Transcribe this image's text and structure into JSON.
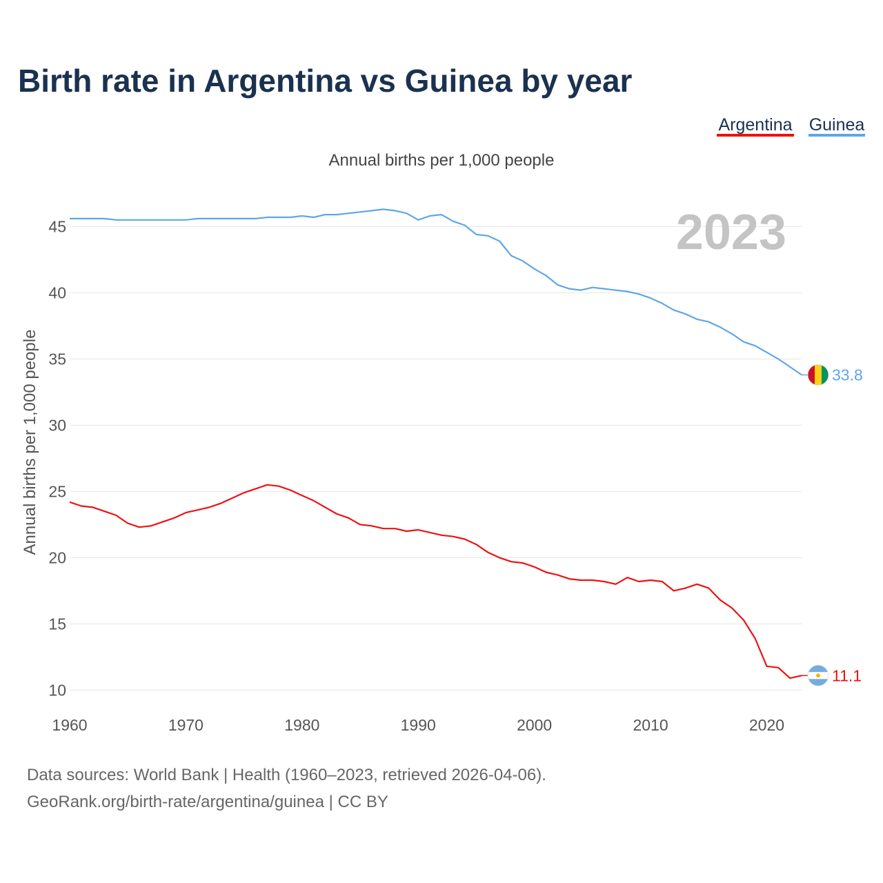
{
  "title": "Birth rate in Argentina vs Guinea by year",
  "subtitle": "Annual births per 1,000 people",
  "year_overlay": "2023",
  "legend": [
    {
      "name": "Argentina",
      "color": "#ee1111"
    },
    {
      "name": "Guinea",
      "color": "#5ea6e8"
    }
  ],
  "sources": {
    "line1": "Data sources: World Bank | Health (1960–2023, retrieved 2026-04-06).",
    "line2": "GeoRank.org/birth-rate/argentina/guinea | CC BY"
  },
  "chart_data": {
    "type": "line",
    "title": "Birth rate in Argentina vs Guinea by year",
    "subtitle": "Annual births per 1,000 people",
    "xlabel": "",
    "ylabel": "Annual births per 1,000 people",
    "xlim": [
      1960,
      2023
    ],
    "ylim": [
      9.5,
      47
    ],
    "x_ticks": [
      1960,
      1970,
      1980,
      1990,
      2000,
      2010,
      2020
    ],
    "y_ticks": [
      10,
      15,
      20,
      25,
      30,
      35,
      40,
      45
    ],
    "grid": true,
    "legend_position": "top-right",
    "x": [
      1960,
      1961,
      1962,
      1963,
      1964,
      1965,
      1966,
      1967,
      1968,
      1969,
      1970,
      1971,
      1972,
      1973,
      1974,
      1975,
      1976,
      1977,
      1978,
      1979,
      1980,
      1981,
      1982,
      1983,
      1984,
      1985,
      1986,
      1987,
      1988,
      1989,
      1990,
      1991,
      1992,
      1993,
      1994,
      1995,
      1996,
      1997,
      1998,
      1999,
      2000,
      2001,
      2002,
      2003,
      2004,
      2005,
      2006,
      2007,
      2008,
      2009,
      2010,
      2011,
      2012,
      2013,
      2014,
      2015,
      2016,
      2017,
      2018,
      2019,
      2020,
      2021,
      2022,
      2023
    ],
    "series": [
      {
        "name": "Argentina",
        "color": "#ee1111",
        "end_label": "11.1",
        "flag": "argentina",
        "values": [
          24.2,
          23.9,
          23.8,
          23.5,
          23.2,
          22.6,
          22.3,
          22.4,
          22.7,
          23.0,
          23.4,
          23.6,
          23.8,
          24.1,
          24.5,
          24.9,
          25.2,
          25.5,
          25.4,
          25.1,
          24.7,
          24.3,
          23.8,
          23.3,
          23.0,
          22.5,
          22.4,
          22.2,
          22.2,
          22.0,
          22.1,
          21.9,
          21.7,
          21.6,
          21.4,
          21.0,
          20.4,
          20.0,
          19.7,
          19.6,
          19.3,
          18.9,
          18.7,
          18.4,
          18.3,
          18.3,
          18.2,
          18.0,
          18.5,
          18.2,
          18.3,
          18.2,
          17.5,
          17.7,
          18.0,
          17.7,
          16.8,
          16.2,
          15.3,
          13.9,
          11.8,
          11.7,
          10.9,
          11.1
        ]
      },
      {
        "name": "Guinea",
        "color": "#5ea6e8",
        "end_label": "33.8",
        "flag": "guinea",
        "values": [
          45.6,
          45.6,
          45.6,
          45.6,
          45.5,
          45.5,
          45.5,
          45.5,
          45.5,
          45.5,
          45.5,
          45.6,
          45.6,
          45.6,
          45.6,
          45.6,
          45.6,
          45.7,
          45.7,
          45.7,
          45.8,
          45.7,
          45.9,
          45.9,
          46.0,
          46.1,
          46.2,
          46.3,
          46.2,
          46.0,
          45.5,
          45.8,
          45.9,
          45.4,
          45.1,
          44.4,
          44.3,
          43.9,
          42.8,
          42.4,
          41.8,
          41.3,
          40.6,
          40.3,
          40.2,
          40.4,
          40.3,
          40.2,
          40.1,
          39.9,
          39.6,
          39.2,
          38.7,
          38.4,
          38.0,
          37.8,
          37.4,
          36.9,
          36.3,
          36.0,
          35.5,
          35.0,
          34.4,
          33.8
        ]
      }
    ]
  }
}
